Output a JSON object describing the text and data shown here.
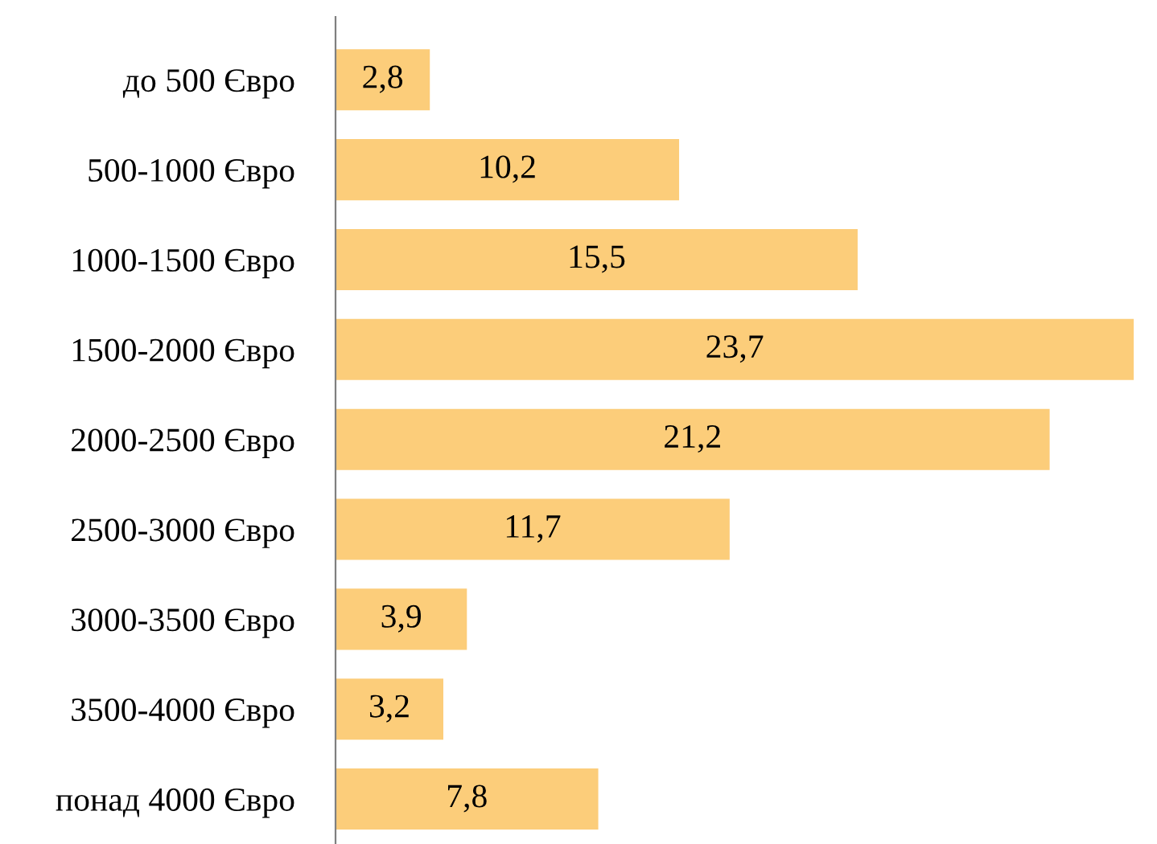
{
  "chart_data": {
    "type": "bar",
    "orientation": "horizontal",
    "categories": [
      "до 500 Євро",
      "500-1000 Євро",
      "1000-1500 Євро",
      "1500-2000 Євро",
      "2000-2500 Євро",
      "2500-3000 Євро",
      "3000-3500 Євро",
      "3500-4000 Євро",
      "понад 4000 Євро"
    ],
    "values": [
      2.8,
      10.2,
      15.5,
      23.7,
      21.2,
      11.7,
      3.9,
      3.2,
      7.8
    ],
    "value_labels": [
      "2,8",
      "10,2",
      "15,5",
      "23,7",
      "21,2",
      "11,7",
      "3,9",
      "3,2",
      "7,8"
    ],
    "color": "#fccd7a",
    "grid": false,
    "tick_labels": "y"
  }
}
